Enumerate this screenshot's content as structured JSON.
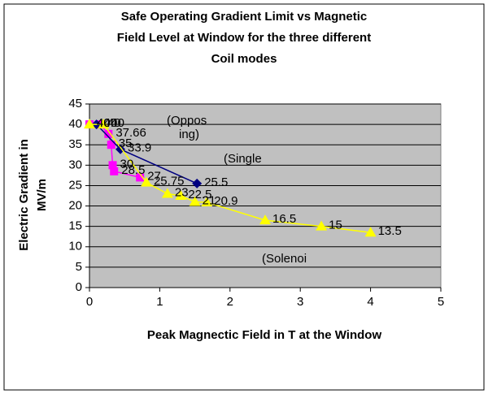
{
  "chart_data": {
    "type": "scatter",
    "title": [
      "Safe Operating Gradient Limit vs  Magnetic",
      "Field Level at Window for the three different",
      "Coil modes"
    ],
    "xlabel": "Peak  Magnectic Field in T at the Window",
    "ylabel": [
      "Electric Gradient in",
      "MV/m"
    ],
    "xlim": [
      0,
      5
    ],
    "xticks": [
      0,
      1,
      2,
      3,
      4,
      5
    ],
    "ylim": [
      0,
      45
    ],
    "yticks": [
      0,
      5,
      10,
      15,
      20,
      25,
      30,
      35,
      40,
      45
    ],
    "grid": true,
    "plot_background": "#c0c0c0",
    "annotations": [
      "(Oppos",
      "ing)",
      "(Single",
      "(Solenoi"
    ],
    "series": [
      {
        "name": "Opposing",
        "color": "#ff00ff",
        "marker": "square",
        "x": [
          0,
          0.15,
          0.27,
          0.31,
          0.33,
          0.35,
          0.72
        ],
        "values": [
          40,
          40,
          37.66,
          35,
          30,
          28.5,
          27
        ]
      },
      {
        "name": "Single",
        "color": "#000080",
        "marker": "diamond",
        "x": [
          0.1,
          0.44,
          1.53
        ],
        "values": [
          40,
          33.9,
          25.5
        ]
      },
      {
        "name": "Solenoid",
        "color": "#ffff00",
        "marker": "triangle",
        "x": [
          0,
          0.2,
          0.81,
          1.11,
          1.3,
          1.5,
          1.67,
          2.5,
          3.3,
          4
        ],
        "values": [
          40,
          40,
          25.75,
          23,
          22.5,
          21,
          20.9,
          16.5,
          15,
          13.5
        ]
      }
    ]
  }
}
